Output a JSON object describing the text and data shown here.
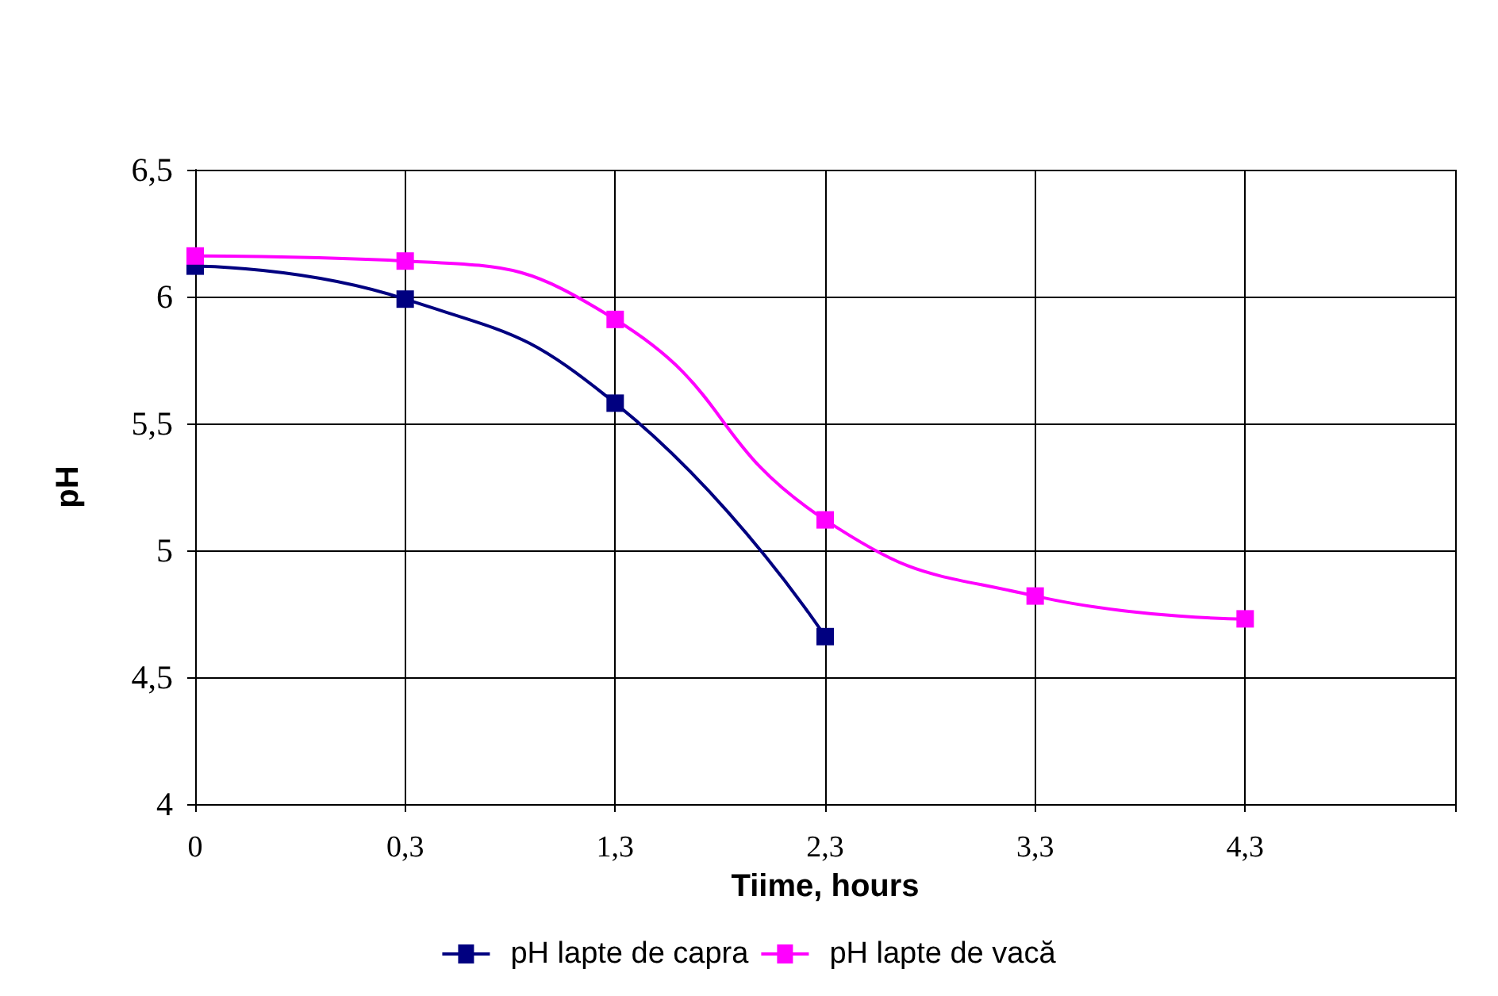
{
  "chart_data": {
    "type": "line",
    "xlabel": "Tiime, hours",
    "ylabel": "pH",
    "categories": [
      "0",
      "0,3",
      "1,3",
      "2,3",
      "3,3",
      "4,3",
      null
    ],
    "series": [
      {
        "name": "pH lapte de capra",
        "color": "#000080",
        "values": [
          6.12,
          5.99,
          5.58,
          4.66,
          null,
          null,
          null
        ]
      },
      {
        "name": "pH lapte de vacă",
        "color": "#ff00ff",
        "values": [
          6.16,
          6.14,
          5.91,
          5.12,
          4.82,
          4.73,
          null
        ]
      }
    ],
    "ylim": [
      4,
      6.5
    ],
    "yticks": [
      {
        "value": 4,
        "label": "4"
      },
      {
        "value": 4.5,
        "label": "4,5"
      },
      {
        "value": 5,
        "label": "5"
      },
      {
        "value": 5.5,
        "label": "5,5"
      },
      {
        "value": 6,
        "label": "6"
      },
      {
        "value": 6.5,
        "label": "6,5"
      }
    ],
    "grid": true,
    "legend": "bottom",
    "marker": "square",
    "line_style": "solid"
  }
}
